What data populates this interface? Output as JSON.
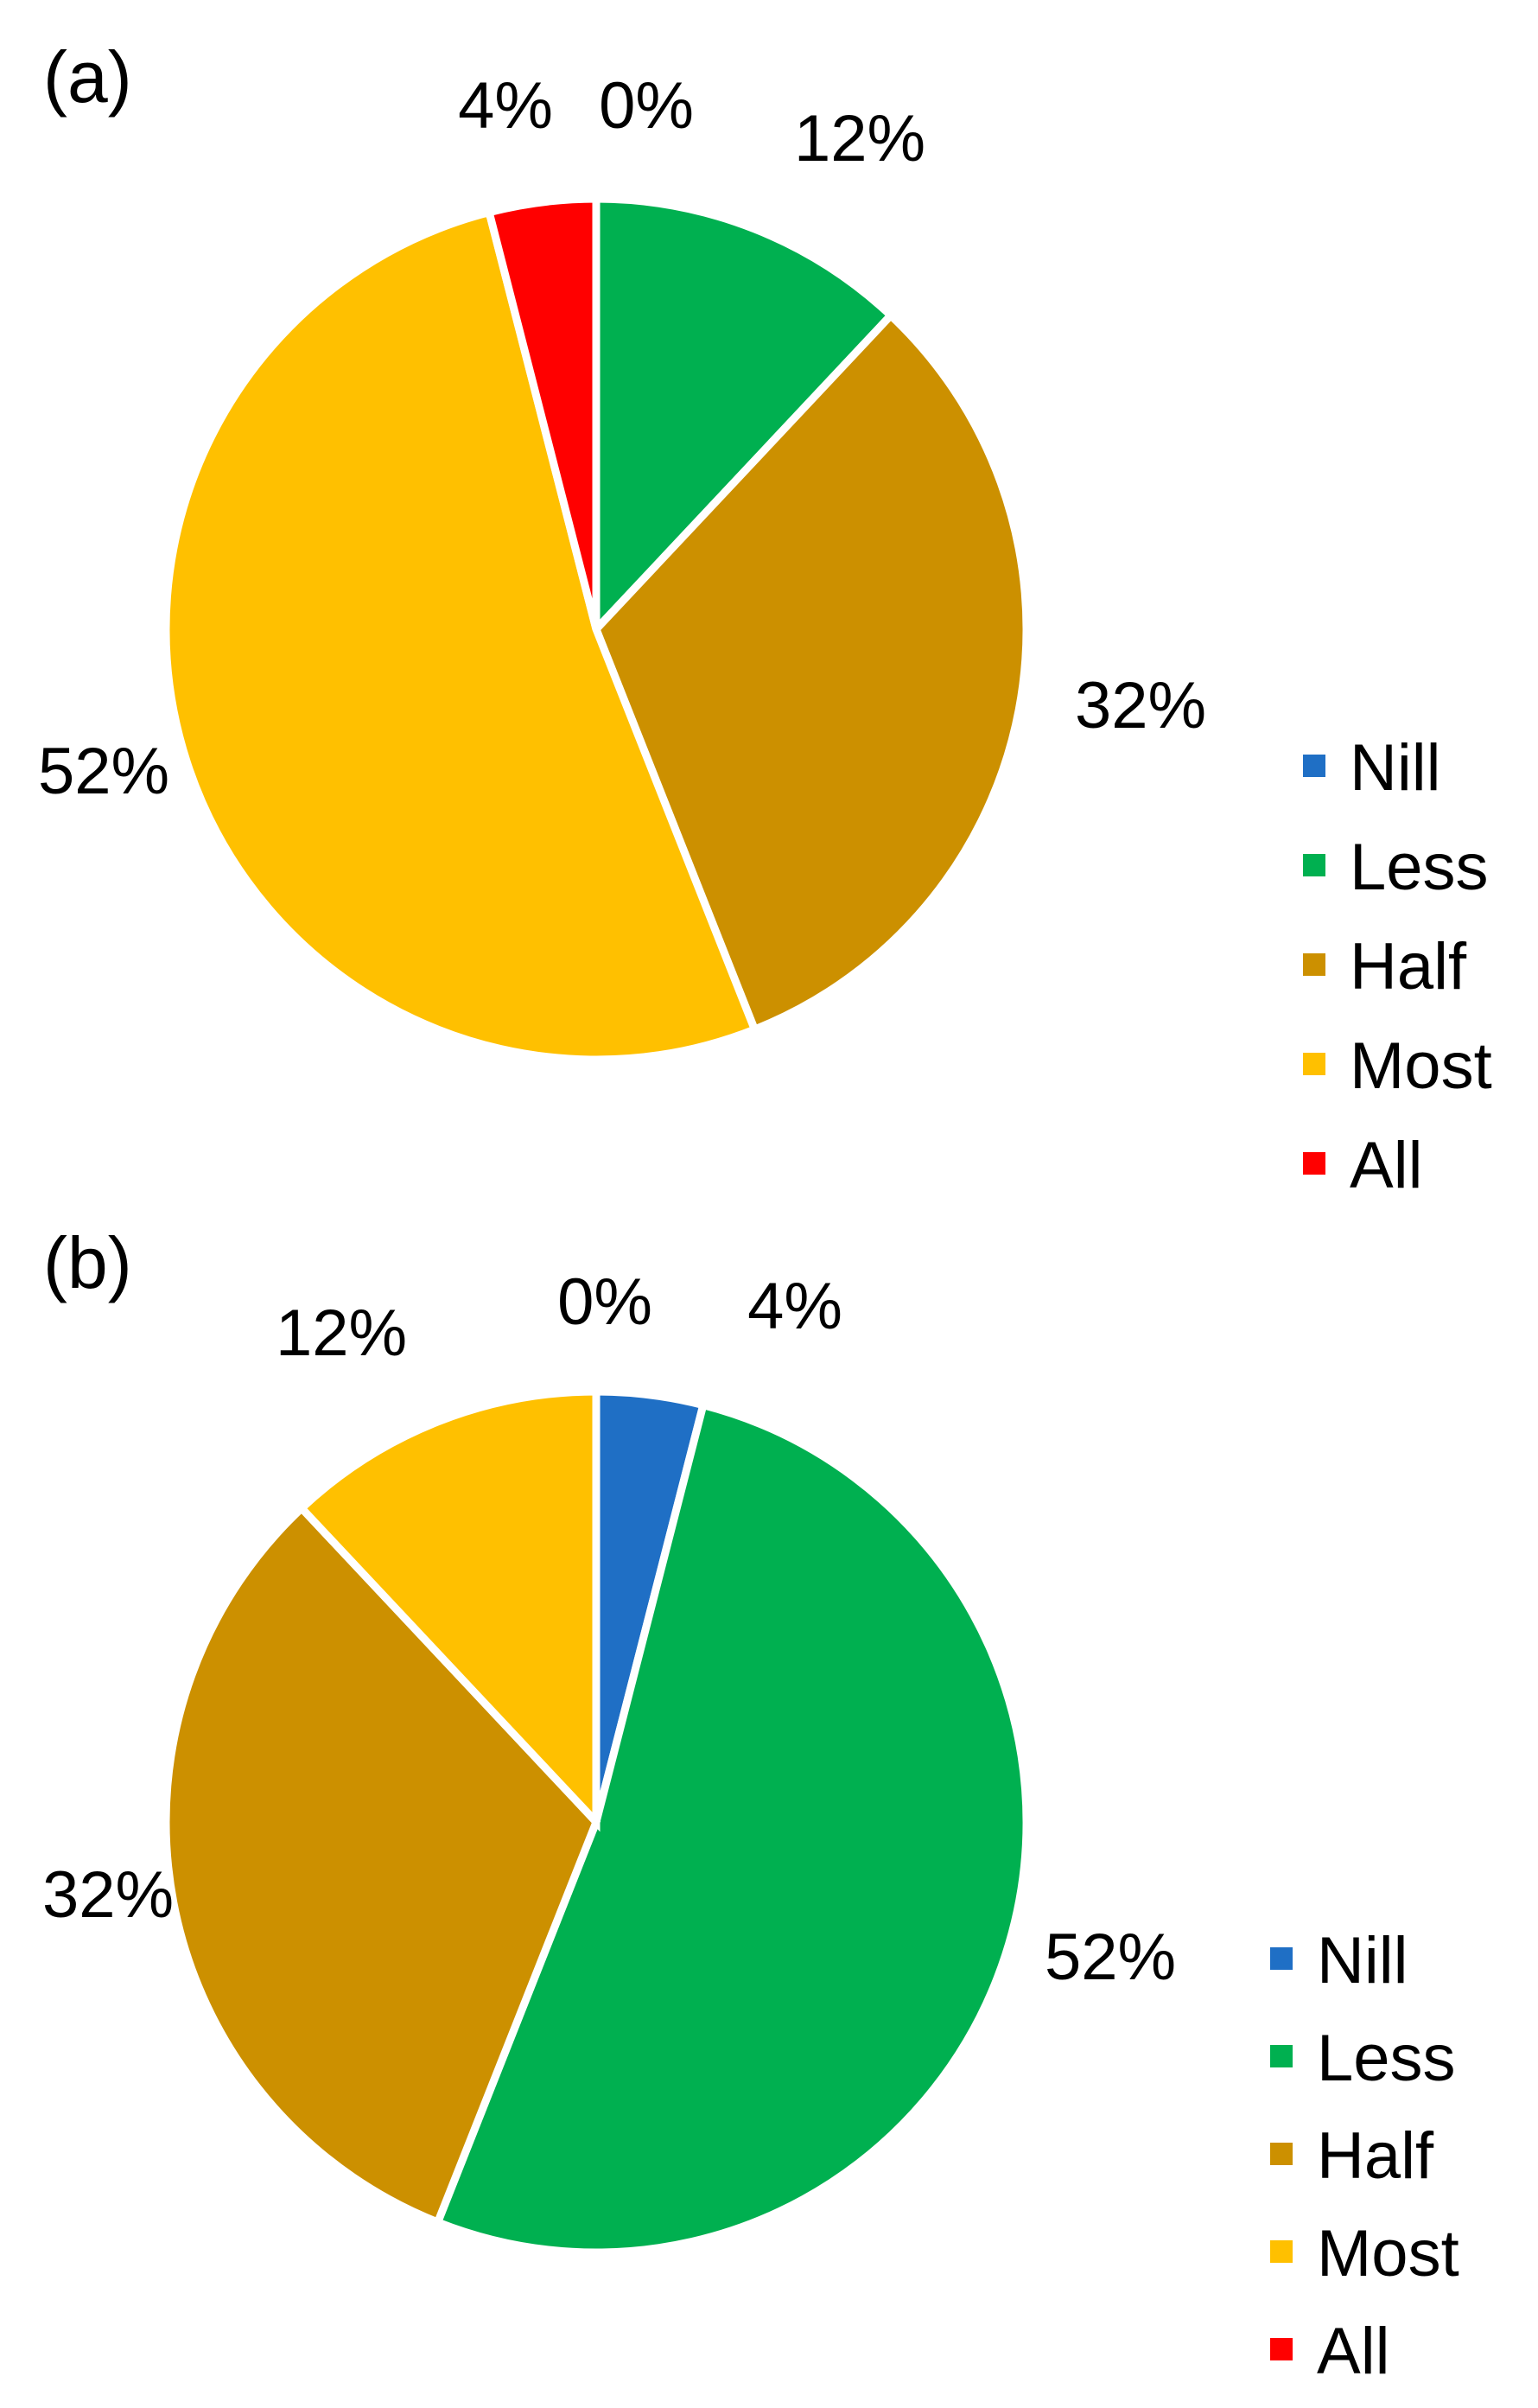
{
  "chart_data": [
    {
      "type": "pie",
      "panel_label": "(a)",
      "categories": [
        "Nill",
        "Less",
        "Half",
        "Most",
        "All"
      ],
      "values": [
        0,
        12,
        32,
        52,
        4
      ],
      "data_labels": [
        "0%",
        "12%",
        "32%",
        "52%",
        "4%"
      ],
      "colors": [
        "#1f6fc5",
        "#00b050",
        "#cc9000",
        "#ffc000",
        "#ff0000"
      ],
      "start": "12 o'clock",
      "direction": "clockwise",
      "legend": {
        "position": "right",
        "entries": [
          "Nill",
          "Less",
          "Half",
          "Most",
          "All"
        ]
      }
    },
    {
      "type": "pie",
      "panel_label": "(b)",
      "categories": [
        "Nill",
        "Less",
        "Half",
        "Most",
        "All"
      ],
      "values": [
        4,
        52,
        32,
        12,
        0
      ],
      "data_labels": [
        "4%",
        "52%",
        "32%",
        "12%",
        "0%"
      ],
      "colors": [
        "#1f6fc5",
        "#00b050",
        "#cc9000",
        "#ffc000",
        "#ff0000"
      ],
      "start": "12 o'clock",
      "direction": "clockwise",
      "legend": {
        "position": "right",
        "entries": [
          "Nill",
          "Less",
          "Half",
          "Most",
          "All"
        ]
      }
    }
  ]
}
